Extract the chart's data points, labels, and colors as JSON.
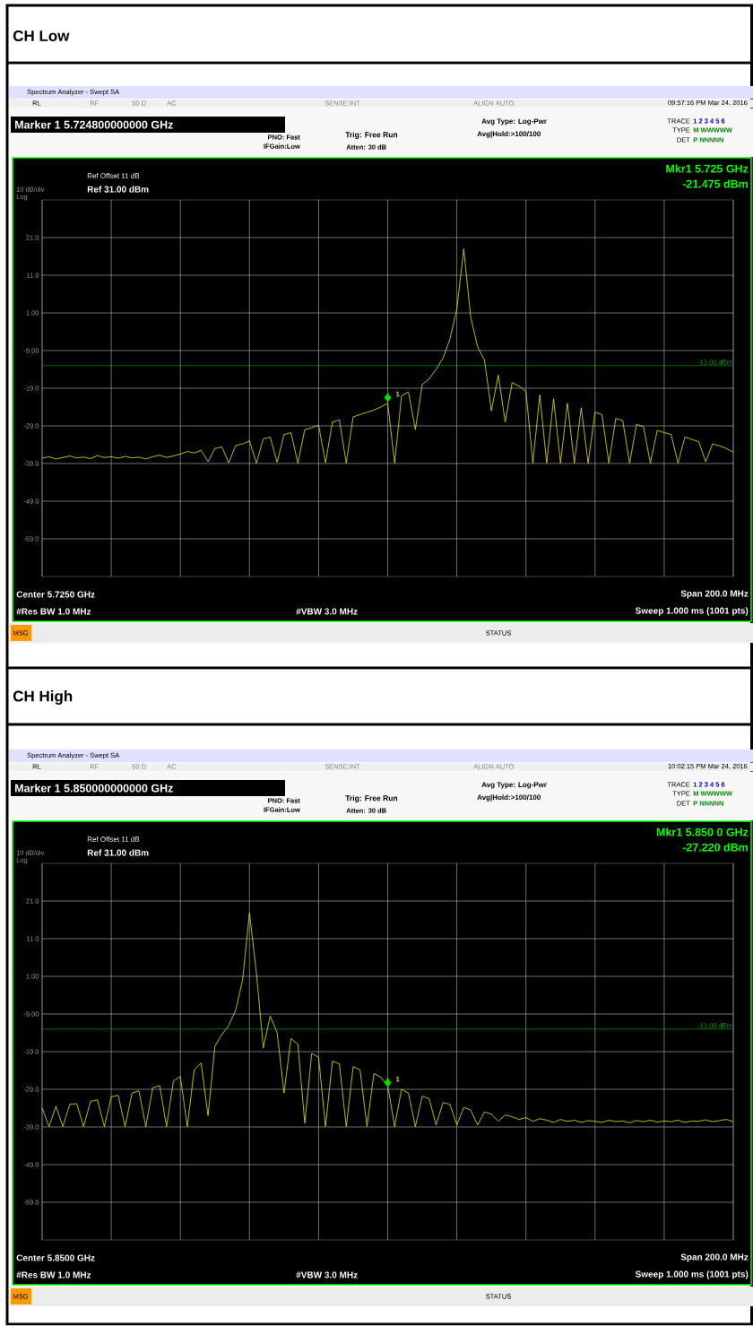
{
  "chart_data": [
    {
      "type": "line",
      "title": "CH Low",
      "categories": [
        null,
        null,
        null,
        null,
        null,
        null,
        null,
        null,
        null,
        null,
        null,
        null,
        null,
        null,
        null,
        null,
        null,
        null,
        null,
        null,
        null,
        null,
        null,
        null,
        null,
        null,
        null,
        null,
        null,
        null,
        null,
        null,
        null,
        null,
        null,
        null,
        null,
        null,
        null,
        null,
        null,
        null,
        null,
        null,
        null,
        null,
        null,
        null,
        null,
        null,
        null,
        null,
        null,
        null,
        null,
        null,
        null,
        null,
        null,
        null,
        null,
        null,
        null,
        null,
        null,
        null,
        null,
        null,
        null,
        null,
        null,
        null,
        null,
        null,
        null,
        null,
        null,
        null,
        null,
        null,
        null,
        null,
        null,
        null,
        null,
        null,
        null,
        null,
        null,
        null,
        null,
        null,
        null,
        null,
        null,
        null,
        null,
        null,
        null,
        null,
        null
      ],
      "series": [
        {
          "color": "#e8e800",
          "values": [
            -37.6,
            -37.2,
            -37.8,
            -37.4,
            -37.0,
            -37.5,
            -37.3,
            -37.7,
            -36.9,
            -37.4,
            -37.2,
            -37.6,
            -37.1,
            -37.5,
            -37.3,
            -37.8,
            -37.2,
            -36.8,
            -37.4,
            -37.0,
            -36.5,
            -35.8,
            -36.2,
            -35.5,
            -38.5,
            -35.0,
            -34.6,
            -38.8,
            -34.2,
            -33.8,
            -33.0,
            -38.9,
            -32.4,
            -32.0,
            -38.7,
            -31.3,
            -30.8,
            -38.9,
            -30.0,
            -29.5,
            -28.8,
            -38.8,
            -28.0,
            -27.4,
            -38.9,
            -26.6,
            -26.0,
            -25.4,
            -24.8,
            -24.0,
            -23.0,
            -38.9,
            -21.0,
            -20.0,
            -30.0,
            -18.0,
            -16.5,
            -14.0,
            -11.0,
            -6.0,
            2.0,
            18.0,
            0.0,
            -8.0,
            -11.5,
            -25.0,
            -15.5,
            -28.0,
            -17.5,
            -18.5,
            -19.8,
            -38.9,
            -20.8,
            -38.9,
            -21.8,
            -38.9,
            -23.0,
            -38.9,
            -24.2,
            -38.9,
            -25.4,
            -26.0,
            -38.9,
            -27.0,
            -27.6,
            -38.9,
            -28.6,
            -29.2,
            -38.9,
            -30.2,
            -30.8,
            -31.3,
            -38.9,
            -32.0,
            -32.6,
            -33.2,
            -38.5,
            -33.8,
            -34.3,
            -35.0,
            -36.0
          ]
        },
        {
          "type": "scatter",
          "marker": "diamond",
          "color": "#00e000",
          "values": [
            null,
            null,
            null,
            null,
            null,
            null,
            null,
            null,
            null,
            null,
            null,
            null,
            null,
            null,
            null,
            null,
            null,
            null,
            null,
            null,
            null,
            null,
            null,
            null,
            null,
            null,
            null,
            null,
            null,
            null,
            null,
            null,
            null,
            null,
            null,
            null,
            null,
            null,
            null,
            null,
            null,
            null,
            null,
            null,
            null,
            null,
            null,
            null,
            null,
            null,
            -21.5,
            null,
            null,
            null,
            null,
            null,
            null,
            null,
            null,
            null,
            null,
            null,
            null,
            null,
            null,
            null,
            null,
            null,
            null,
            null,
            null,
            null,
            null,
            null,
            null,
            null,
            null,
            null,
            null,
            null,
            null,
            null,
            null,
            null,
            null,
            null,
            null,
            null,
            null,
            null,
            null,
            null,
            null,
            null,
            null,
            null,
            null,
            null,
            null,
            null,
            null
          ]
        }
      ],
      "ylim": [
        -69,
        31
      ],
      "yticks": [
        {
          "value": 21,
          "label": "21.0"
        },
        {
          "value": 11,
          "label": "11.0"
        },
        {
          "value": 1,
          "label": "1.00"
        },
        {
          "value": -9,
          "label": "-9.00"
        },
        {
          "value": -19,
          "label": "-19.0"
        },
        {
          "value": -29,
          "label": "-29.0"
        },
        {
          "value": -39,
          "label": "-39.0"
        },
        {
          "value": -49,
          "label": "-49.0"
        },
        {
          "value": -59,
          "label": "-59.0"
        }
      ],
      "grid": true,
      "tick_labels": "y",
      "ref_lines": [
        {
          "axis": "y",
          "value": -13,
          "label": "-13.00 dBm",
          "color": "#00a000"
        }
      ],
      "annotations": [
        "Spectrum Analyzer - Swept SA",
        "RL",
        "RF",
        "50 Ω",
        "AC",
        "SENSE:INT",
        "ALIGN AUTO",
        "09:57:16 PM Mar 24, 2016",
        "Marker 1 5.724800000000 GHz",
        "PNO: Fast",
        "IFGain:Low",
        "Trig: Free Run",
        "Atten: 30 dB",
        "Avg Type: Log-Pwr",
        "Avg|Hold:>100/100",
        "TRACE",
        "1 2 3 4 5 6",
        "TYPE",
        "M WWWWW",
        "DET",
        "P NNNNN",
        "Ref Offset 11 dB",
        "Ref 31.00 dBm",
        "10 dB/div",
        "Log",
        "Mkr1 5.725 GHz",
        "-21.475 dBm",
        "Center 5.7250 GHz",
        "Span 200.0 MHz",
        "#Res BW 1.0 MHz",
        "#VBW 3.0 MHz",
        "Sweep 1.000 ms (1001 pts)",
        "MSG",
        "STATUS",
        "1"
      ]
    },
    {
      "type": "line",
      "title": "CH High",
      "categories": [
        null,
        null,
        null,
        null,
        null,
        null,
        null,
        null,
        null,
        null,
        null,
        null,
        null,
        null,
        null,
        null,
        null,
        null,
        null,
        null,
        null,
        null,
        null,
        null,
        null,
        null,
        null,
        null,
        null,
        null,
        null,
        null,
        null,
        null,
        null,
        null,
        null,
        null,
        null,
        null,
        null,
        null,
        null,
        null,
        null,
        null,
        null,
        null,
        null,
        null,
        null,
        null,
        null,
        null,
        null,
        null,
        null,
        null,
        null,
        null,
        null,
        null,
        null,
        null,
        null,
        null,
        null,
        null,
        null,
        null,
        null,
        null,
        null,
        null,
        null,
        null,
        null,
        null,
        null,
        null,
        null,
        null,
        null,
        null,
        null,
        null,
        null,
        null,
        null,
        null,
        null,
        null,
        null,
        null,
        null,
        null,
        null,
        null,
        null,
        null,
        null
      ],
      "series": [
        {
          "color": "#e8e800",
          "values": [
            -34.0,
            -38.9,
            -33.5,
            -38.9,
            -33.0,
            -32.8,
            -38.9,
            -32.2,
            -31.8,
            -38.9,
            -31.0,
            -30.6,
            -38.9,
            -30.0,
            -29.4,
            -38.9,
            -28.6,
            -28.0,
            -38.9,
            -26.8,
            -25.6,
            -38.9,
            -23.8,
            -22.0,
            -36.0,
            -17.5,
            -14.5,
            -12.0,
            -8.0,
            0.0,
            17.8,
            2.0,
            -18.0,
            -9.5,
            -14.0,
            -30.0,
            -15.5,
            -17.0,
            -38.0,
            -19.5,
            -20.5,
            -38.9,
            -21.5,
            -22.2,
            -38.9,
            -23.0,
            -23.8,
            -38.9,
            -24.8,
            -25.8,
            -28.0,
            -38.9,
            -29.0,
            -30.0,
            -38.9,
            -30.8,
            -31.5,
            -38.5,
            -32.5,
            -33.0,
            -38.5,
            -33.8,
            -34.5,
            -38.5,
            -35.0,
            -35.6,
            -37.5,
            -35.8,
            -36.3,
            -37.0,
            -36.5,
            -37.5,
            -36.8,
            -37.2,
            -37.8,
            -37.0,
            -37.5,
            -37.2,
            -37.8,
            -37.3,
            -37.5,
            -37.8,
            -37.2,
            -37.6,
            -37.4,
            -37.9,
            -37.3,
            -37.6,
            -37.2,
            -37.7,
            -37.4,
            -37.6,
            -37.2,
            -37.8,
            -37.4,
            -37.5,
            -37.1,
            -37.6,
            -37.3,
            -37.0,
            -37.6
          ]
        },
        {
          "type": "scatter",
          "marker": "diamond",
          "color": "#00e000",
          "values": [
            null,
            null,
            null,
            null,
            null,
            null,
            null,
            null,
            null,
            null,
            null,
            null,
            null,
            null,
            null,
            null,
            null,
            null,
            null,
            null,
            null,
            null,
            null,
            null,
            null,
            null,
            null,
            null,
            null,
            null,
            null,
            null,
            null,
            null,
            null,
            null,
            null,
            null,
            null,
            null,
            null,
            null,
            null,
            null,
            null,
            null,
            null,
            null,
            null,
            null,
            -27.2,
            null,
            null,
            null,
            null,
            null,
            null,
            null,
            null,
            null,
            null,
            null,
            null,
            null,
            null,
            null,
            null,
            null,
            null,
            null,
            null,
            null,
            null,
            null,
            null,
            null,
            null,
            null,
            null,
            null,
            null,
            null,
            null,
            null,
            null,
            null,
            null,
            null,
            null,
            null,
            null,
            null,
            null,
            null,
            null,
            null,
            null,
            null,
            null,
            null,
            null
          ]
        }
      ],
      "ylim": [
        -69,
        31
      ],
      "yticks": [
        {
          "value": 21,
          "label": "21.0"
        },
        {
          "value": 11,
          "label": "11.0"
        },
        {
          "value": 1,
          "label": "1.00"
        },
        {
          "value": -9,
          "label": "-9.00"
        },
        {
          "value": -19,
          "label": "-19.0"
        },
        {
          "value": -29,
          "label": "-29.0"
        },
        {
          "value": -39,
          "label": "-39.0"
        },
        {
          "value": -49,
          "label": "-49.0"
        },
        {
          "value": -59,
          "label": "-59.0"
        }
      ],
      "grid": true,
      "tick_labels": "y",
      "ref_lines": [
        {
          "axis": "y",
          "value": -13,
          "label": "-13.00 dBm",
          "color": "#00a000"
        }
      ],
      "annotations": [
        "Spectrum Analyzer - Swept SA",
        "RL",
        "RF",
        "50 Ω",
        "AC",
        "SENSE:INT",
        "ALIGN AUTO",
        "10:02:15 PM Mar 24, 2016",
        "Marker 1 5.850000000000 GHz",
        "PNO: Fast",
        "IFGain:Low",
        "Trig: Free Run",
        "Atten: 30 dB",
        "Avg Type: Log-Pwr",
        "Avg|Hold:>100/100",
        "TRACE",
        "1 2 3 4 5 6",
        "TYPE",
        "M WWWWW",
        "DET",
        "P NNNNN",
        "Ref Offset 11 dB",
        "Ref 31.00 dBm",
        "10 dB/div",
        "Log",
        "Mkr1 5.850 0 GHz",
        "-27.220 dBm",
        "Center 5.8500 GHz",
        "Span 200.0 MHz",
        "#Res BW 1.0 MHz",
        "#VBW 3.0 MHz",
        "Sweep 1.000 ms (1001 pts)",
        "MSG",
        "STATUS",
        "1"
      ]
    }
  ]
}
